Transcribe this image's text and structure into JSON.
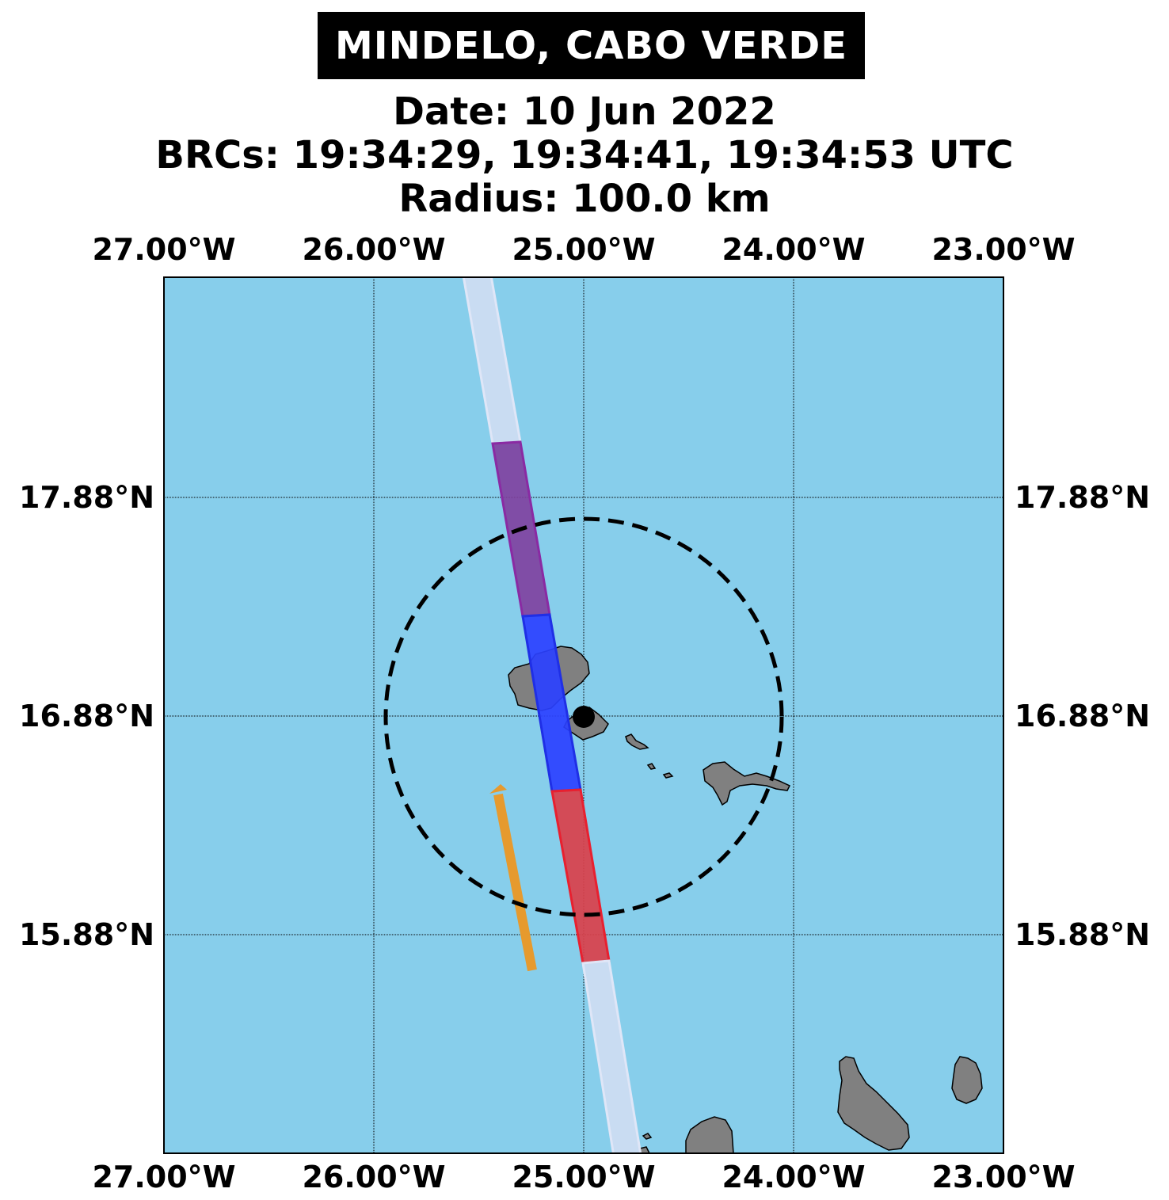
{
  "title": "MINDELO, CABO VERDE",
  "subtitle": {
    "date": "Date: 10 Jun 2022",
    "brcs": "BRCs: 19:34:29, 19:34:41, 19:34:53 UTC",
    "radius": "Radius: 100.0 km"
  },
  "map": {
    "lon_range": [
      -27.0,
      -23.0
    ],
    "lat_range": [
      14.88,
      18.88
    ],
    "x_ticks": [
      "27.00°W",
      "26.00°W",
      "25.00°W",
      "24.00°W",
      "23.00°W"
    ],
    "y_ticks": [
      "17.88°N",
      "16.88°N",
      "15.88°N"
    ],
    "ocean_color": "#87ceeb",
    "land_color": "#808080",
    "gridlines": true,
    "site": {
      "name": "Mindelo",
      "lon": -25.0,
      "lat": 16.88,
      "radius_km": 100.0
    },
    "swath_colors": {
      "outer": "#ccdcf2",
      "brc1": "#7f3f9f",
      "brc2": "#2b41ff",
      "brc3": "#d9404a"
    },
    "motion_arrow_color": "#e69a2e"
  }
}
